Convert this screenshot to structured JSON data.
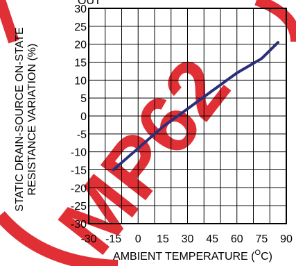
{
  "chart_data": {
    "type": "line",
    "xlabel": "AMBIENT TEMPERATURE (",
    "xlabel_sup": "O",
    "xlabel_unit": "C)",
    "ylabel_line1": "STATIC DRAIN-SOURCE ON-STATE",
    "ylabel_line2": "RESISTANCE VARIATION (%)",
    "top_fragment": "OUT",
    "xlim": [
      -30,
      90
    ],
    "ylim": [
      -30,
      30
    ],
    "xticks": [
      "-30",
      "-15",
      "0",
      "15",
      "30",
      "45",
      "60",
      "75",
      "90"
    ],
    "yticks": [
      "30",
      "25",
      "20",
      "15",
      "10",
      "5",
      "0",
      "-5",
      "-10",
      "-15",
      "-20",
      "-25",
      "-30"
    ],
    "grid": true,
    "series": [
      {
        "x": [
          -15,
          0,
          15,
          30,
          45,
          60,
          75,
          85
        ],
        "y": [
          -15,
          -9,
          -3,
          2,
          7,
          12,
          16,
          20.5
        ],
        "color": "#2b2f7a"
      }
    ]
  },
  "watermark": {
    "text": "MP62",
    "color": "#e0252b"
  }
}
